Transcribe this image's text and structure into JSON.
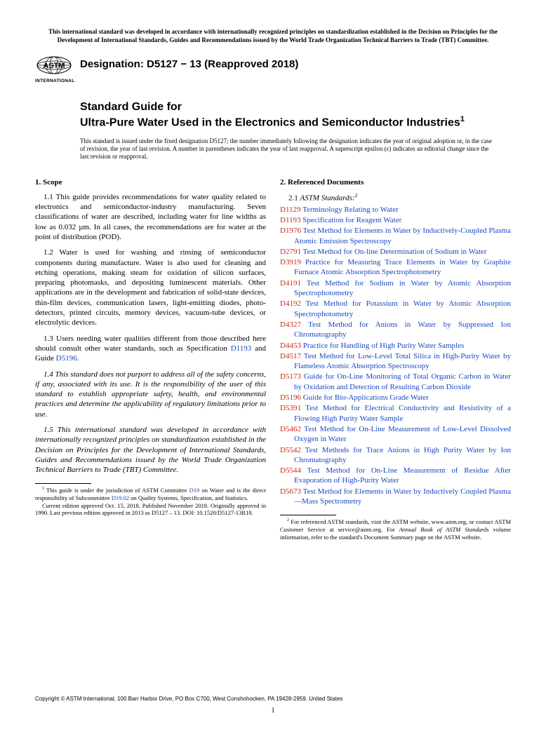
{
  "top_notice": "This international standard was developed in accordance with internationally recognized principles on standardization established in the Decision on Principles for the Development of International Standards, Guides and Recommendations issued by the World Trade Organization Technical Barriers to Trade (TBT) Committee.",
  "logo_text": "INTERNATIONAL",
  "designation": "Designation: D5127 − 13 (Reapproved 2018)",
  "title_prefix": "Standard Guide for",
  "title_main": "Ultra-Pure Water Used in the Electronics and Semiconductor Industries",
  "title_sup": "1",
  "issued_note": "This standard is issued under the fixed designation D5127; the number immediately following the designation indicates the year of original adoption or, in the case of revision, the year of last revision. A number in parentheses indicates the year of last reapproval. A superscript epsilon (ε) indicates an editorial change since the last revision or reapproval.",
  "scope": {
    "heading": "1. Scope",
    "p1": "1.1 This guide provides recommendations for water quality related to electronics and semiconductor-industry manufacturing. Seven classifications of water are described, including water for line widths as low as 0.032 µm. In all cases, the recommendations are for water at the point of distribution (POD).",
    "p2": "1.2 Water is used for washing and rinsing of semiconductor components during manufacture. Water is also used for cleaning and etching operations, making steam for oxidation of silicon surfaces, preparing photomasks, and depositing luminescent materials. Other applications are in the development and fabrication of solid-state devices, thin-film devices, communication lasers, light-emitting diodes, photo-detectors, printed circuits, memory devices, vacuum-tube devices, or electrolytic devices.",
    "p3_pre": "1.3 Users needing water qualities different from those described here should consult other water standards, such as Specification ",
    "p3_link1": "D1193",
    "p3_mid": " and Guide ",
    "p3_link2": "D5196",
    "p3_post": ".",
    "p4": "1.4 This standard does not purport to address all of the safety concerns, if any, associated with its use. It is the responsibility of the user of this standard to establish appropriate safety, health, and environmental practices and determine the applicability of regulatory limitations prior to use.",
    "p5": "1.5 This international standard was developed in accordance with internationally recognized principles on standardization established in the Decision on Principles for the Development of International Standards, Guides and Recommendations issued by the World Trade Organization Technical Barriers to Trade (TBT) Committee."
  },
  "footnote1": {
    "pre": " This guide is under the jurisdiction of ASTM Committee ",
    "link1": "D19",
    "mid1": " on Water and is the direct responsibility of Subcommittee ",
    "link2": "D19.02",
    "mid2": " on Quality Systems, Specification, and Statistics.",
    "para2": "Current edition approved Oct. 15, 2018. Published November 2018. Originally approved in 1990. Last previous edition approved in 2013 as D5127 – 13. DOI: 10.1520/D5127-13R18."
  },
  "refs": {
    "heading": "2. Referenced Documents",
    "sub_num": "2.1 ",
    "sub_ital": "ASTM Standards:",
    "sub_sup": "2",
    "items": [
      {
        "code": "D1129",
        "text": " Terminology Relating to Water"
      },
      {
        "code": "D1193",
        "text": " Specification for Reagent Water"
      },
      {
        "code": "D1976",
        "text": " Test Method for Elements in Water by Inductively-Coupled Plasma Atomic Emission Spectroscopy"
      },
      {
        "code": "D2791",
        "text": " Test Method for On-line Determination of Sodium in Water"
      },
      {
        "code": "D3919",
        "text": " Practice for Measuring Trace Elements in Water by Graphite Furnace Atomic Absorption Spectrophotometry"
      },
      {
        "code": "D4191",
        "text": " Test Method for Sodium in Water by Atomic Absorption Spectrophotometry"
      },
      {
        "code": "D4192",
        "text": " Test Method for Potassium in Water by Atomic Absorption Spectrophotometry"
      },
      {
        "code": "D4327",
        "text": " Test Method for Anions in Water by Suppressed Ion Chromatography"
      },
      {
        "code": "D4453",
        "text": " Practice for Handling of High Purity Water Samples"
      },
      {
        "code": "D4517",
        "text": " Test Method for Low-Level Total Silica in High-Purity Water by Flameless Atomic Absorption Spectroscopy"
      },
      {
        "code": "D5173",
        "text": " Guide for On-Line Monitoring of Total Organic Carbon in Water by Oxidation and Detection of Resulting Carbon Dioxide"
      },
      {
        "code": "D5196",
        "text": " Guide for Bio-Applications Grade Water"
      },
      {
        "code": "D5391",
        "text": " Test Method for Electrical Conductivity and Resistivity of a Flowing High Purity Water Sample"
      },
      {
        "code": "D5462",
        "text": " Test Method for On-Line Measurement of Low-Level Dissolved Oxygen in Water"
      },
      {
        "code": "D5542",
        "text": " Test Methods for Trace Anions in High Purity Water by Ion Chromatography"
      },
      {
        "code": "D5544",
        "text": " Test Method for On-Line Measurement of Residue After Evaporation of High-Purity Water"
      },
      {
        "code": "D5673",
        "text": " Test Method for Elements in Water by Inductively Coupled Plasma—Mass Spectrometry"
      }
    ]
  },
  "footnote2": {
    "pre": " For referenced ASTM standards, visit the ASTM website, www.astm.org, or contact ASTM Customer Service at service@astm.org. For ",
    "ital": "Annual Book of ASTM Standards",
    "post": " volume information, refer to the standard's Document Summary page on the ASTM website."
  },
  "copyright": "Copyright © ASTM International, 100 Barr Harbor Drive, PO Box C700, West Conshohocken, PA 19428-2959. United States",
  "page_num": "1",
  "colors": {
    "link": "#1947c5",
    "code": "#c52b19",
    "text": "#000000",
    "bg": "#ffffff"
  }
}
